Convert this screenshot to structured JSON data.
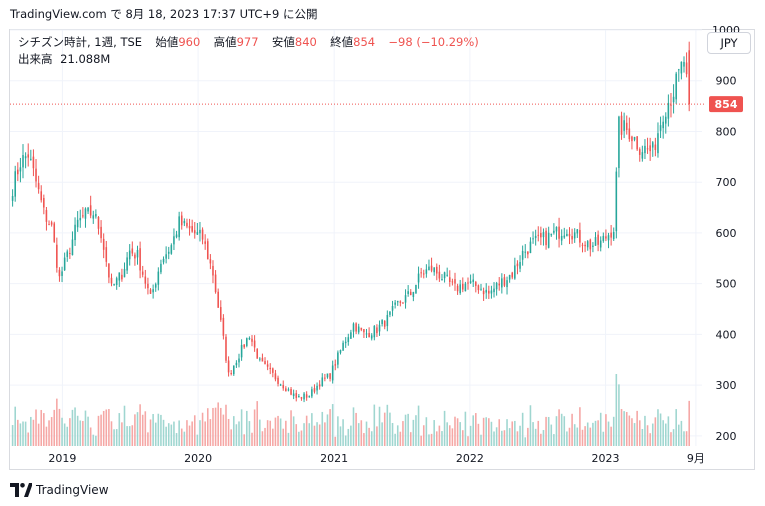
{
  "header": {
    "attribution": "TradingView.com で 8月 18, 2023 17:37 UTC+9 に公開"
  },
  "legend": {
    "symbol": "シチズン時計, 1週, TSE",
    "open_label": "始値",
    "open_value": "960",
    "high_label": "高値",
    "high_value": "977",
    "low_label": "安値",
    "low_value": "840",
    "close_label": "終値",
    "close_value": "854",
    "change": "−98 (−10.29%)",
    "volume_label": "出来高",
    "volume_value": "21.088M"
  },
  "currency_button": "JPY",
  "price_tag": "854",
  "footer": {
    "brand": "TradingView"
  },
  "colors": {
    "up": "#26a69a",
    "down": "#ef5350",
    "up_volume": "#9fd6d0",
    "down_volume": "#f5a7a5",
    "grid": "#f0f3fa",
    "price_line": "#ef5350"
  },
  "chart_data": {
    "type": "candlestick",
    "interval": "1 week",
    "y_axis": {
      "ticks": [
        200,
        300,
        400,
        500,
        600,
        700,
        800,
        900,
        1000
      ],
      "range": [
        180,
        1000
      ],
      "position": "right"
    },
    "x_axis": {
      "ticks": [
        "2019",
        "2020",
        "2021",
        "2022",
        "2023",
        "9月"
      ]
    },
    "last_price": 854,
    "grid": true,
    "series": [
      {
        "name": "price (weekly close, approx.)",
        "anchors": [
          [
            "2018-08-20",
            690
          ],
          [
            "2018-09-10",
            740
          ],
          [
            "2018-10-01",
            755
          ],
          [
            "2018-10-22",
            700
          ],
          [
            "2018-11-12",
            640
          ],
          [
            "2018-12-03",
            610
          ],
          [
            "2018-12-24",
            510
          ],
          [
            "2019-01-21",
            570
          ],
          [
            "2019-02-11",
            620
          ],
          [
            "2019-03-04",
            635
          ],
          [
            "2019-03-25",
            640
          ],
          [
            "2019-04-15",
            600
          ],
          [
            "2019-05-13",
            490
          ],
          [
            "2019-06-10",
            520
          ],
          [
            "2019-07-01",
            565
          ],
          [
            "2019-07-22",
            555
          ],
          [
            "2019-08-26",
            470
          ],
          [
            "2019-09-23",
            545
          ],
          [
            "2019-10-21",
            575
          ],
          [
            "2019-11-11",
            620
          ],
          [
            "2019-12-09",
            605
          ],
          [
            "2020-01-13",
            590
          ],
          [
            "2020-02-10",
            520
          ],
          [
            "2020-03-09",
            390
          ],
          [
            "2020-03-23",
            320
          ],
          [
            "2020-04-20",
            360
          ],
          [
            "2020-05-18",
            400
          ],
          [
            "2020-06-15",
            345
          ],
          [
            "2020-07-20",
            320
          ],
          [
            "2020-08-24",
            295
          ],
          [
            "2020-09-21",
            275
          ],
          [
            "2020-10-26",
            280
          ],
          [
            "2020-11-23",
            305
          ],
          [
            "2020-12-21",
            320
          ],
          [
            "2021-01-25",
            380
          ],
          [
            "2021-02-22",
            420
          ],
          [
            "2021-03-22",
            400
          ],
          [
            "2021-04-26",
            410
          ],
          [
            "2021-05-24",
            430
          ],
          [
            "2021-06-21",
            460
          ],
          [
            "2021-07-26",
            480
          ],
          [
            "2021-08-23",
            520
          ],
          [
            "2021-09-20",
            530
          ],
          [
            "2021-10-25",
            510
          ],
          [
            "2021-11-22",
            490
          ],
          [
            "2021-12-20",
            500
          ],
          [
            "2022-01-24",
            495
          ],
          [
            "2022-02-21",
            480
          ],
          [
            "2022-03-21",
            500
          ],
          [
            "2022-04-25",
            520
          ],
          [
            "2022-05-23",
            560
          ],
          [
            "2022-06-20",
            580
          ],
          [
            "2022-07-25",
            590
          ],
          [
            "2022-08-22",
            600
          ],
          [
            "2022-09-19",
            610
          ],
          [
            "2022-10-24",
            590
          ],
          [
            "2022-11-21",
            575
          ],
          [
            "2022-12-19",
            580
          ],
          [
            "2023-01-23",
            610
          ],
          [
            "2023-02-06",
            810
          ],
          [
            "2023-03-06",
            800
          ],
          [
            "2023-04-03",
            770
          ],
          [
            "2023-05-08",
            760
          ],
          [
            "2023-06-05",
            840
          ],
          [
            "2023-07-03",
            880
          ],
          [
            "2023-07-31",
            940
          ],
          [
            "2023-08-14",
            854
          ]
        ]
      },
      {
        "name": "出来高",
        "latest": "21.088M"
      }
    ]
  }
}
